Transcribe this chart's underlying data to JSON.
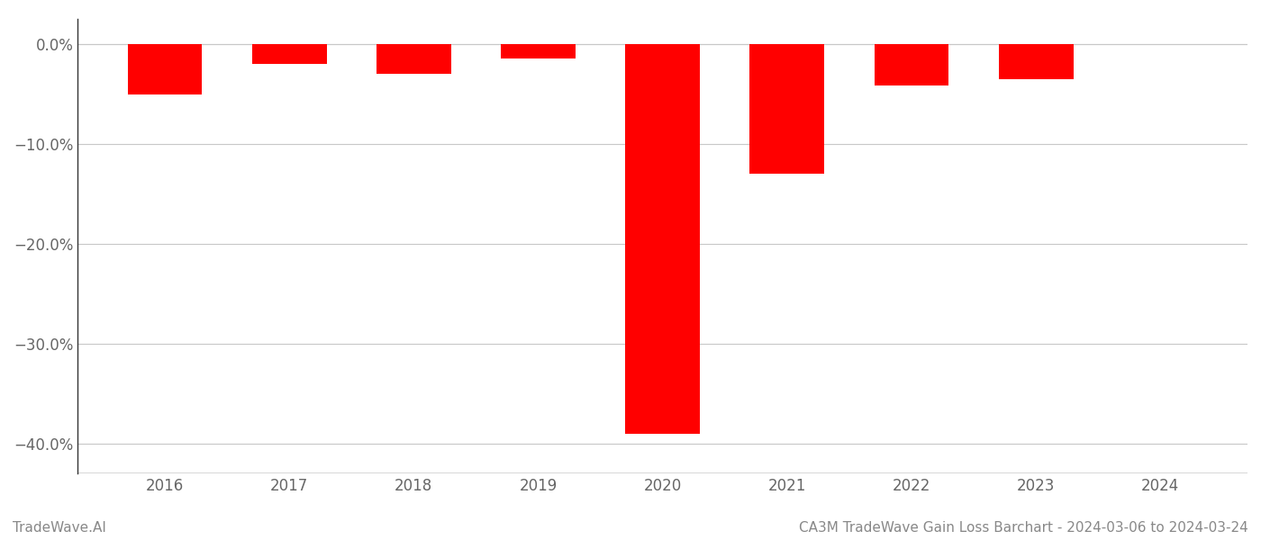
{
  "years": [
    2016,
    2017,
    2018,
    2019,
    2020,
    2021,
    2022,
    2023,
    2024
  ],
  "values": [
    -5.1,
    -2.0,
    -3.0,
    -1.5,
    -39.0,
    -13.0,
    -4.2,
    -3.5,
    0.0
  ],
  "bar_color": "#ff0000",
  "background_color": "#ffffff",
  "grid_color": "#c8c8c8",
  "spine_color": "#333333",
  "tick_color": "#666666",
  "ylim": [
    -43,
    2.5
  ],
  "yticks": [
    0,
    -10,
    -20,
    -30,
    -40
  ],
  "ytick_labels": [
    "0.0%",
    "−10.0%",
    "−20.0%",
    "−30.0%",
    "−40.0%"
  ],
  "footer_left": "TradeWave.AI",
  "footer_right": "CA3M TradeWave Gain Loss Barchart - 2024-03-06 to 2024-03-24",
  "footer_color": "#888888",
  "footer_fontsize": 11,
  "bar_width": 0.6,
  "xlim": [
    2015.3,
    2024.7
  ]
}
